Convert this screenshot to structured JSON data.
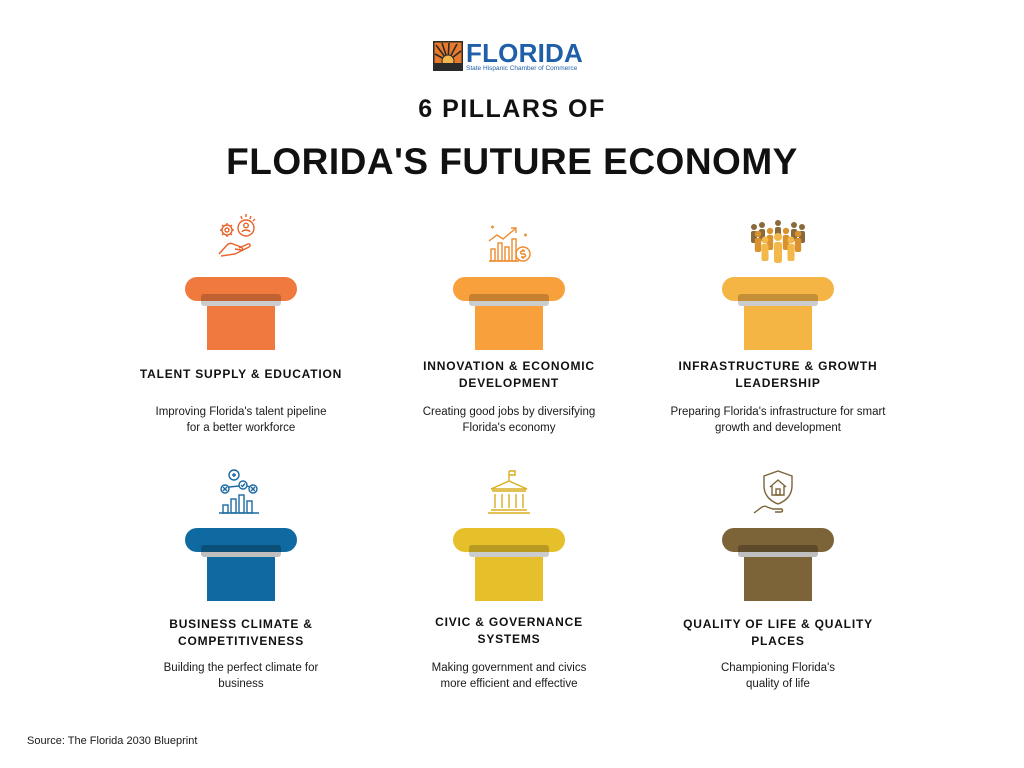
{
  "logo": {
    "word": "FLORIDA",
    "subtitle": "State Hispanic Chamber of Commerce",
    "colors": {
      "orange": "#e97a2b",
      "blue": "#1f5fa8",
      "dark": "#2b2b2b"
    }
  },
  "title": {
    "line1": "6 PILLARS OF",
    "line2": "FLORIDA'S FUTURE ECONOMY"
  },
  "pillars": [
    {
      "name": "TALENT SUPPLY & EDUCATION",
      "description": "Improving Florida's talent pipeline for a better workforce",
      "color": "#f07a3e",
      "icon": "hand-gear-person-icon"
    },
    {
      "name": "INNOVATION & ECONOMIC DEVELOPMENT",
      "description": "Creating good jobs by diversifying Florida's economy",
      "color": "#f8a03c",
      "icon": "growth-chart-dollar-icon"
    },
    {
      "name": "INFRASTRUCTURE & GROWTH LEADERSHIP",
      "description": "Preparing Florida's infrastructure for smart growth and development",
      "color": "#f4b545",
      "icon": "people-group-icon"
    },
    {
      "name": "BUSINESS CLIMATE & COMPETITIVENESS",
      "description": "Building the perfect climate for business",
      "color": "#0e6aa0",
      "icon": "bar-chart-analysis-icon"
    },
    {
      "name": "CIVIC & GOVERNANCE SYSTEMS",
      "description": "Making government and civics more efficient and effective",
      "color": "#e6c02a",
      "icon": "government-building-icon"
    },
    {
      "name": "QUALITY OF LIFE & QUALITY PLACES",
      "description": "Championing Florida's quality of life",
      "color": "#7c6338",
      "icon": "house-shield-hand-icon"
    }
  ],
  "source": "Source: The Florida 2030 Blueprint"
}
